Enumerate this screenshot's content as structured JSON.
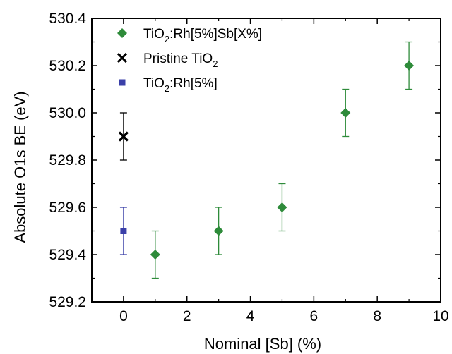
{
  "chart_data": {
    "type": "scatter",
    "xlabel": "Nominal [Sb] (%)",
    "ylabel": "Absolute O1s BE (eV)",
    "xlim": [
      -1,
      10
    ],
    "ylim": [
      529.2,
      530.4
    ],
    "xticks": [
      0,
      2,
      4,
      6,
      8,
      10
    ],
    "yticks": [
      "529.2",
      "529.4",
      "529.6",
      "529.8",
      "530.0",
      "530.2",
      "530.4"
    ],
    "grid": false,
    "legend_position": "top-left",
    "series": [
      {
        "name": "TiO2:Rh[5%]Sb[X%]",
        "legend_main": "TiO",
        "legend_sub": "2",
        "legend_rest": ":Rh[5%]Sb[X%]",
        "marker": "diamond",
        "color": "#2e8b3a",
        "points": [
          {
            "x": 1,
            "y": 529.4,
            "err": 0.1
          },
          {
            "x": 3,
            "y": 529.5,
            "err": 0.1
          },
          {
            "x": 5,
            "y": 529.6,
            "err": 0.1
          },
          {
            "x": 7,
            "y": 530.0,
            "err": 0.1
          },
          {
            "x": 9,
            "y": 530.2,
            "err": 0.1
          }
        ]
      },
      {
        "name": "Pristine TiO2",
        "legend_main": "Pristine TiO",
        "legend_sub": "2",
        "legend_rest": "",
        "marker": "x",
        "color": "#000000",
        "points": [
          {
            "x": 0,
            "y": 529.9,
            "err": 0.1
          }
        ]
      },
      {
        "name": "TiO2:Rh[5%]",
        "legend_main": "TiO",
        "legend_sub": "2",
        "legend_rest": ":Rh[5%]",
        "marker": "square",
        "color": "#3a3fa8",
        "points": [
          {
            "x": 0,
            "y": 529.5,
            "err": 0.1
          }
        ]
      }
    ]
  }
}
